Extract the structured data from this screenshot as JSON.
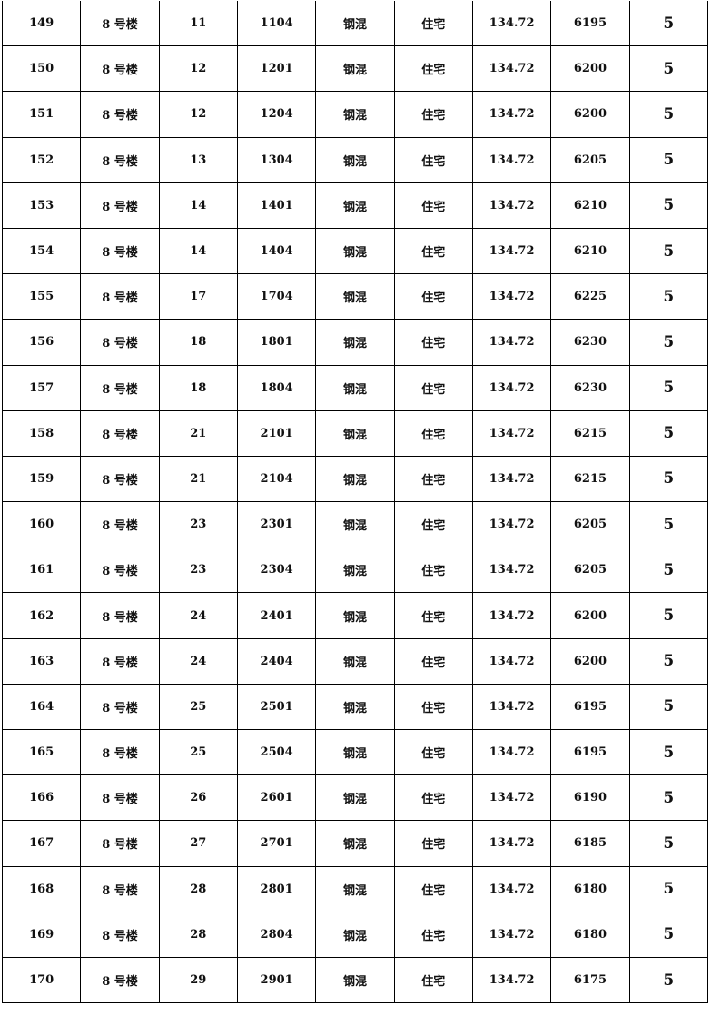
{
  "table": {
    "rows": [
      [
        "149",
        "8 号楼",
        "11",
        "1104",
        "钢混",
        "住宅",
        "134.72",
        "6195",
        "5"
      ],
      [
        "150",
        "8 号楼",
        "12",
        "1201",
        "钢混",
        "住宅",
        "134.72",
        "6200",
        "5"
      ],
      [
        "151",
        "8 号楼",
        "12",
        "1204",
        "钢混",
        "住宅",
        "134.72",
        "6200",
        "5"
      ],
      [
        "152",
        "8 号楼",
        "13",
        "1304",
        "钢混",
        "住宅",
        "134.72",
        "6205",
        "5"
      ],
      [
        "153",
        "8 号楼",
        "14",
        "1401",
        "钢混",
        "住宅",
        "134.72",
        "6210",
        "5"
      ],
      [
        "154",
        "8 号楼",
        "14",
        "1404",
        "钢混",
        "住宅",
        "134.72",
        "6210",
        "5"
      ],
      [
        "155",
        "8 号楼",
        "17",
        "1704",
        "钢混",
        "住宅",
        "134.72",
        "6225",
        "5"
      ],
      [
        "156",
        "8 号楼",
        "18",
        "1801",
        "钢混",
        "住宅",
        "134.72",
        "6230",
        "5"
      ],
      [
        "157",
        "8 号楼",
        "18",
        "1804",
        "钢混",
        "住宅",
        "134.72",
        "6230",
        "5"
      ],
      [
        "158",
        "8 号楼",
        "21",
        "2101",
        "钢混",
        "住宅",
        "134.72",
        "6215",
        "5"
      ],
      [
        "159",
        "8 号楼",
        "21",
        "2104",
        "钢混",
        "住宅",
        "134.72",
        "6215",
        "5"
      ],
      [
        "160",
        "8 号楼",
        "23",
        "2301",
        "钢混",
        "住宅",
        "134.72",
        "6205",
        "5"
      ],
      [
        "161",
        "8 号楼",
        "23",
        "2304",
        "钢混",
        "住宅",
        "134.72",
        "6205",
        "5"
      ],
      [
        "162",
        "8 号楼",
        "24",
        "2401",
        "钢混",
        "住宅",
        "134.72",
        "6200",
        "5"
      ],
      [
        "163",
        "8 号楼",
        "24",
        "2404",
        "钢混",
        "住宅",
        "134.72",
        "6200",
        "5"
      ],
      [
        "164",
        "8 号楼",
        "25",
        "2501",
        "钢混",
        "住宅",
        "134.72",
        "6195",
        "5"
      ],
      [
        "165",
        "8 号楼",
        "25",
        "2504",
        "钢混",
        "住宅",
        "134.72",
        "6195",
        "5"
      ],
      [
        "166",
        "8 号楼",
        "26",
        "2601",
        "钢混",
        "住宅",
        "134.72",
        "6190",
        "5"
      ],
      [
        "167",
        "8 号楼",
        "27",
        "2701",
        "钢混",
        "住宅",
        "134.72",
        "6185",
        "5"
      ],
      [
        "168",
        "8 号楼",
        "28",
        "2801",
        "钢混",
        "住宅",
        "134.72",
        "6180",
        "5"
      ],
      [
        "169",
        "8 号楼",
        "28",
        "2804",
        "钢混",
        "住宅",
        "134.72",
        "6180",
        "5"
      ],
      [
        "170",
        "8 号楼",
        "29",
        "2901",
        "钢混",
        "住宅",
        "134.72",
        "6175",
        "5"
      ]
    ]
  }
}
